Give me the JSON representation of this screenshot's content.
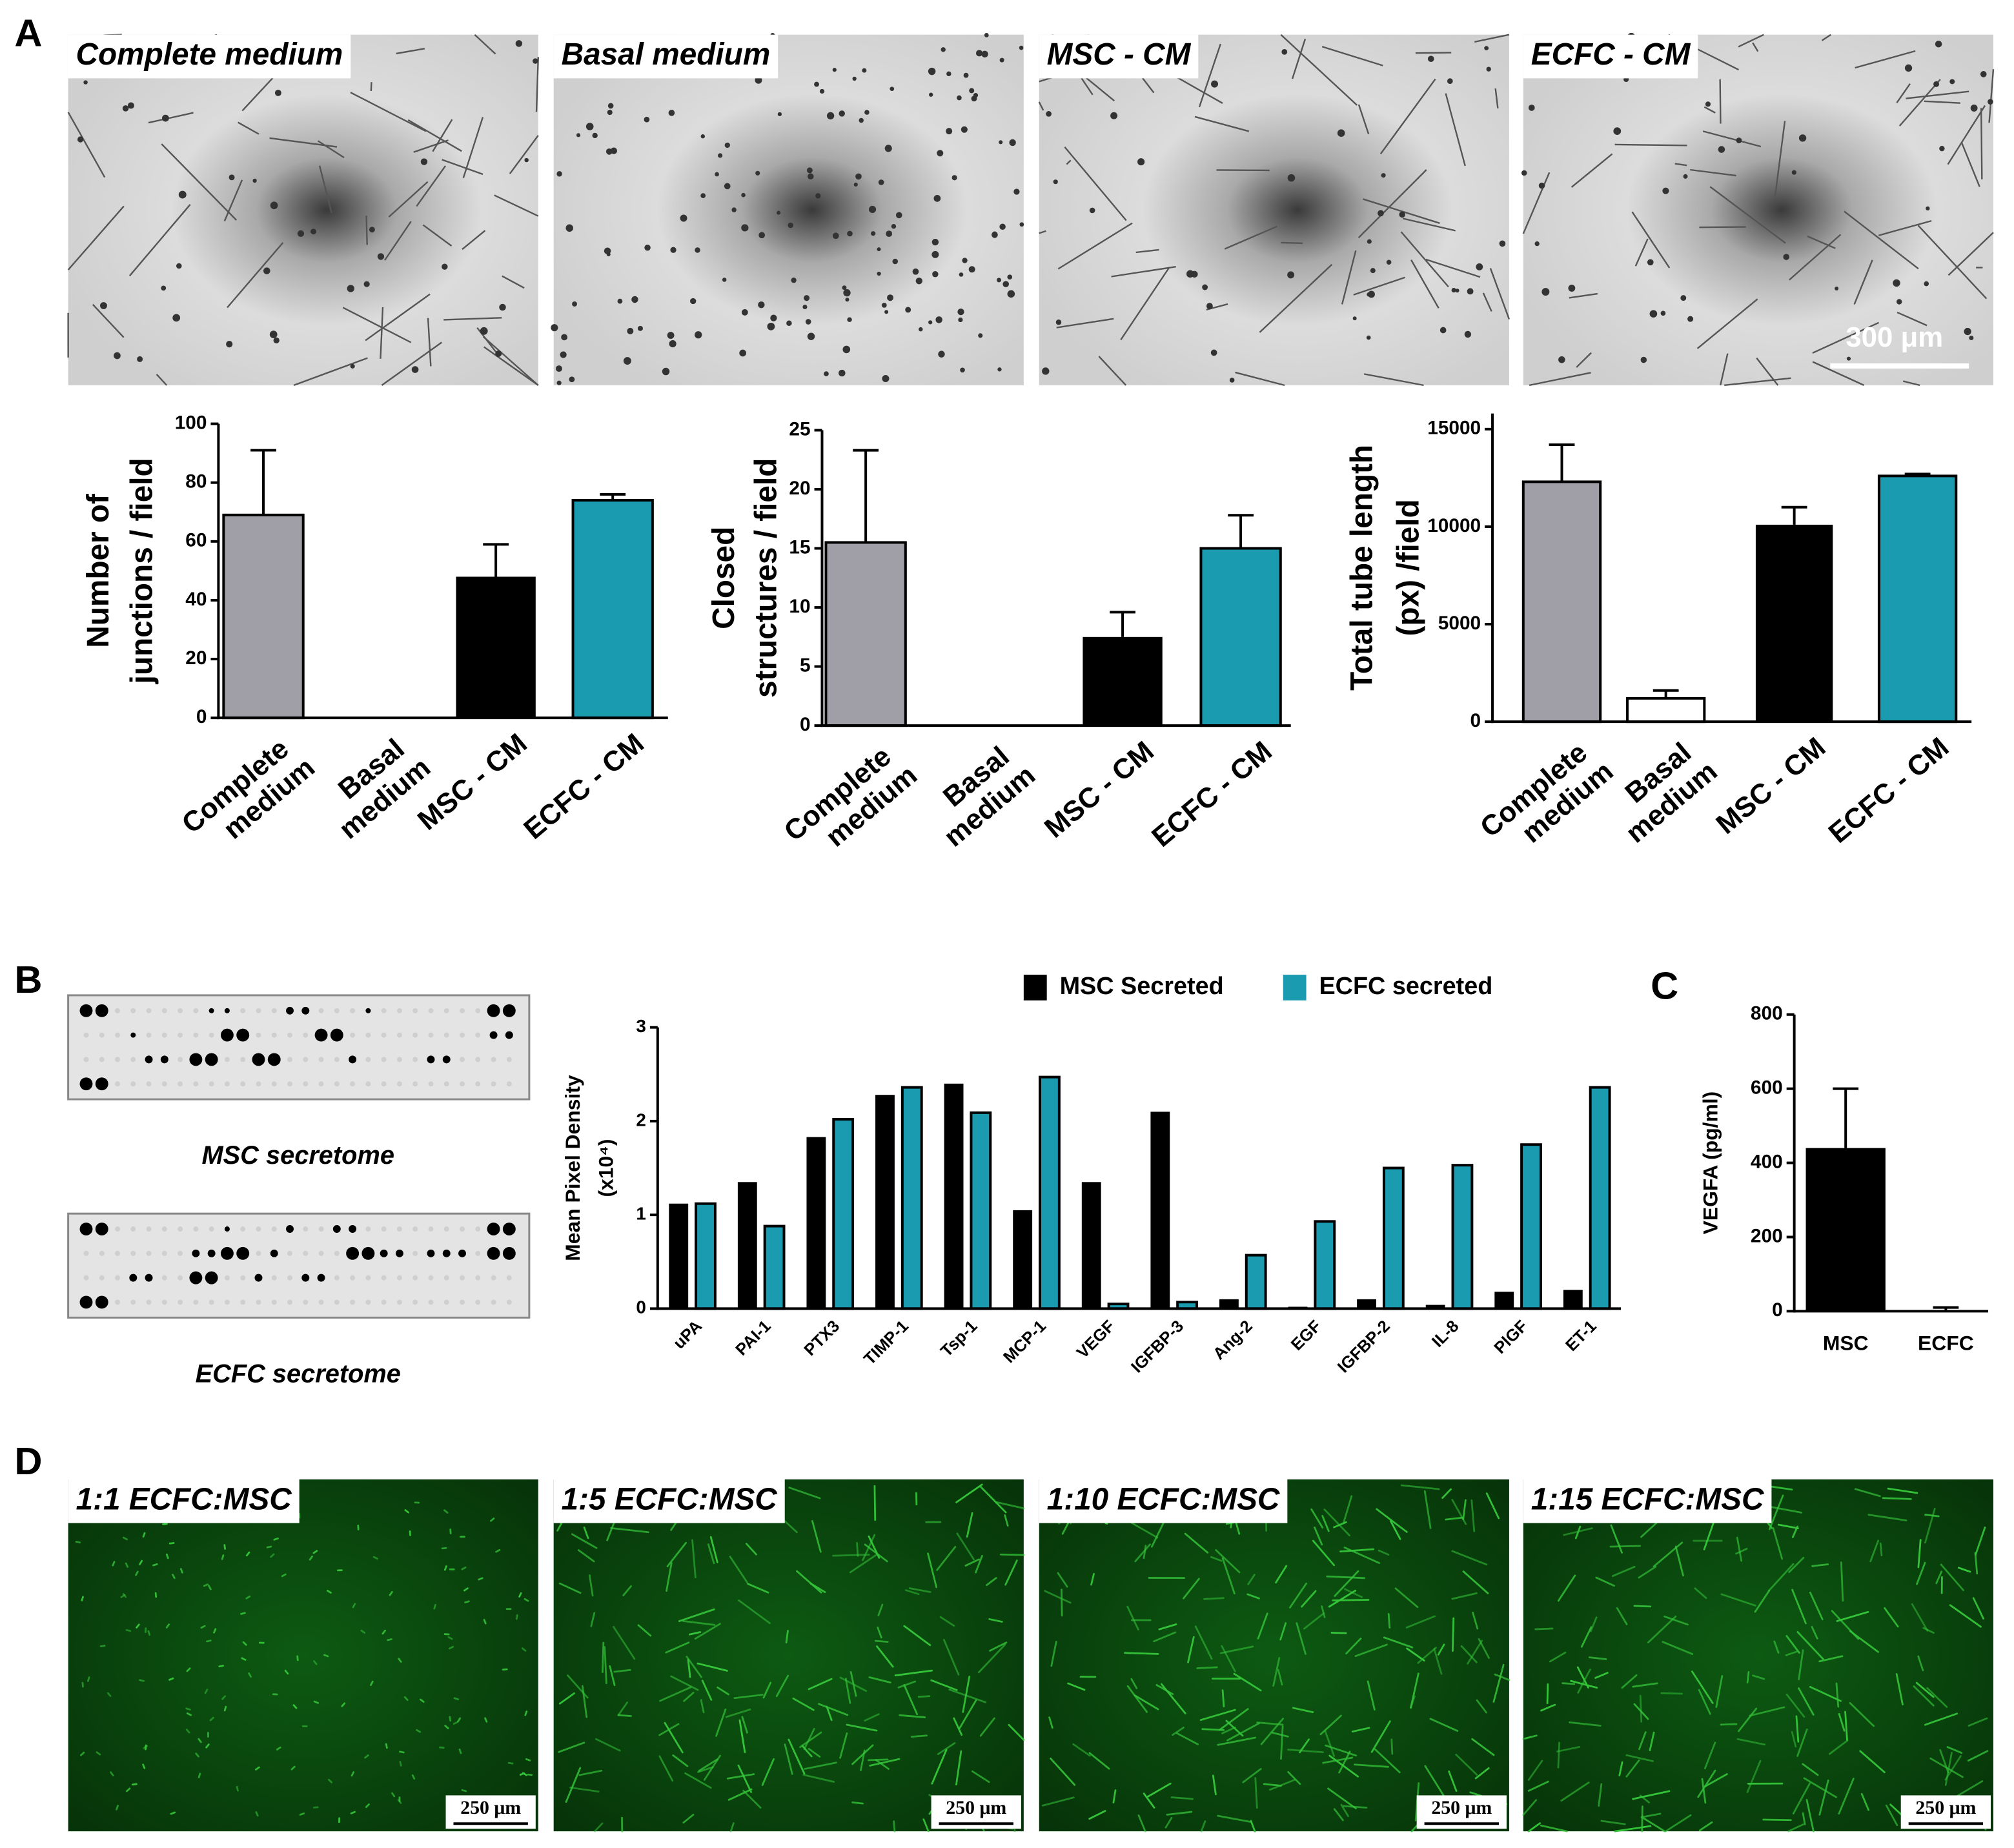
{
  "figure": {
    "panel_labels": [
      "A",
      "B",
      "C",
      "D"
    ],
    "images_a": [
      "Complete medium",
      "Basal medium",
      "MSC - CM",
      "ECFC - CM"
    ],
    "scale_bar_a": "300 μm",
    "arrays": [
      "MSC secretome",
      "ECFC secretome"
    ],
    "images_d": [
      "1:1 ECFC:MSC",
      "1:5 ECFC:MSC",
      "1:10 ECFC:MSC",
      "1:15 ECFC:MSC"
    ],
    "scale_bar_d": "250 μm"
  },
  "chart_data": [
    {
      "type": "bar",
      "y_label": [
        "Number of",
        "junctions / field"
      ],
      "categories": [
        "Complete medium",
        "Basal medium",
        "MSC - CM",
        "ECFC - CM"
      ],
      "values": [
        69,
        0,
        48,
        74
      ],
      "errors": [
        22,
        0,
        11,
        2
      ],
      "colors": [
        "#a09fa8",
        "#ffffff",
        "#000000",
        "#1a9bb0"
      ],
      "ylim": [
        0,
        100
      ],
      "yticks": [
        0,
        20,
        40,
        60,
        80,
        100
      ]
    },
    {
      "type": "bar",
      "y_label": [
        "Closed",
        "structures / field"
      ],
      "categories": [
        "Complete medium",
        "Basal medium",
        "MSC - CM",
        "ECFC - CM"
      ],
      "values": [
        15.5,
        0,
        7.5,
        15
      ],
      "errors": [
        7.8,
        0,
        2.1,
        2.8
      ],
      "colors": [
        "#a09fa8",
        "#ffffff",
        "#000000",
        "#1a9bb0"
      ],
      "ylim": [
        0,
        25
      ],
      "yticks": [
        0,
        5,
        10,
        15,
        20,
        25
      ]
    },
    {
      "type": "bar",
      "y_label": [
        "Total tube length",
        "(px) /field"
      ],
      "categories": [
        "Complete medium",
        "Basal medium",
        "MSC - CM",
        "ECFC - CM"
      ],
      "values": [
        12300,
        1200,
        10100,
        12600
      ],
      "errors": [
        1900,
        400,
        900,
        100
      ],
      "colors": [
        "#a09fa8",
        "#ffffff",
        "#000000",
        "#1a9bb0"
      ],
      "ylim": [
        0,
        15800
      ],
      "yticks": [
        0,
        5000,
        10000,
        15000
      ]
    },
    {
      "type": "grouped_bar",
      "y_label": [
        "Mean Pixel Density",
        "(x10⁴)"
      ],
      "categories": [
        "uPA",
        "PAI-1",
        "PTX3",
        "TIMP-1",
        "Tsp-1",
        "MCP-1",
        "VEGF",
        "IGFBP-3",
        "Ang-2",
        "EGF",
        "IGFBP-2",
        "IL-8",
        "PlGF",
        "ET-1"
      ],
      "series": [
        {
          "name": "MSC Secreted",
          "color": "#000000",
          "values": [
            1.12,
            1.35,
            1.83,
            2.28,
            2.4,
            1.05,
            1.35,
            2.1,
            0.1,
            0.02,
            0.1,
            0.04,
            0.18,
            0.2
          ]
        },
        {
          "name": "ECFC secreted",
          "color": "#1a9bb0",
          "values": [
            1.12,
            0.88,
            2.02,
            2.36,
            2.09,
            2.47,
            0.05,
            0.07,
            0.57,
            0.93,
            1.5,
            1.53,
            1.75,
            2.36
          ]
        }
      ],
      "ylim": [
        0,
        3
      ],
      "yticks": [
        0,
        1,
        2,
        3
      ],
      "legend": "top"
    },
    {
      "type": "bar",
      "y_label": [
        "VEGFA (pg/ml)"
      ],
      "categories": [
        "MSC",
        "ECFC"
      ],
      "values": [
        440,
        2
      ],
      "errors": [
        160,
        8
      ],
      "colors": [
        "#000000",
        "#000000"
      ],
      "ylim": [
        0,
        800
      ],
      "yticks": [
        0,
        200,
        400,
        600,
        800
      ]
    }
  ]
}
